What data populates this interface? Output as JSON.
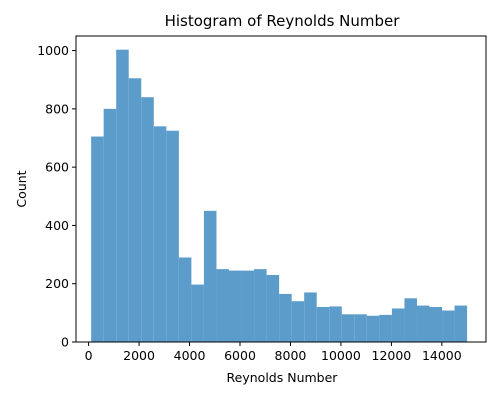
{
  "chart_data": {
    "type": "histogram",
    "title": "Histogram of Reynolds Number",
    "xlabel": "Reynolds Number",
    "ylabel": "Count",
    "xlim": [
      -500,
      15750
    ],
    "ylim": [
      0,
      1050
    ],
    "xticks": [
      0,
      2000,
      4000,
      6000,
      8000,
      10000,
      12000,
      14000
    ],
    "yticks": [
      0,
      200,
      400,
      600,
      800,
      1000
    ],
    "bin_start": 100,
    "bin_width": 496.7,
    "bins": 30,
    "values": [
      705,
      800,
      1003,
      905,
      840,
      740,
      725,
      290,
      197,
      450,
      250,
      245,
      245,
      250,
      230,
      165,
      140,
      170,
      120,
      122,
      95,
      95,
      90,
      93,
      115,
      150,
      125,
      120,
      108,
      125
    ],
    "bar_color": "#5b9ccb",
    "grid": false,
    "legend": "none"
  }
}
